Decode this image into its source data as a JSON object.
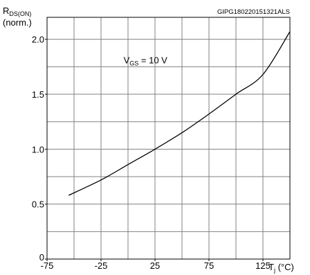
{
  "chart_data": {
    "type": "line",
    "watermark": "GIPG180220151321ALS",
    "ylabel": {
      "main": "R",
      "sub": "DS(ON)",
      "line2": "(norm.)"
    },
    "xlabel": {
      "main": "T",
      "sub": "j",
      "unit": " (°C)"
    },
    "annotation": {
      "main": "V",
      "sub": "GS",
      "rest": " = 10 V",
      "x": 10,
      "y": 1.78
    },
    "xlim": [
      -75,
      150
    ],
    "ylim": [
      0,
      2.2
    ],
    "x_ticks": [
      -75,
      -25,
      25,
      75,
      125
    ],
    "x_tick_labels": [
      "-75",
      "-25",
      "25",
      "75",
      "125"
    ],
    "y_ticks": [
      0,
      0.5,
      1.0,
      1.5,
      2.0
    ],
    "y_tick_labels": [
      "0",
      "0.5",
      "1.0",
      "1.5",
      "2.0"
    ],
    "grid": true,
    "series": [
      {
        "x": [
          -55,
          -25,
          0,
          25,
          50,
          75,
          100,
          125,
          150
        ],
        "y": [
          0.58,
          0.72,
          0.86,
          1.0,
          1.15,
          1.32,
          1.5,
          1.68,
          2.07
        ]
      }
    ]
  }
}
